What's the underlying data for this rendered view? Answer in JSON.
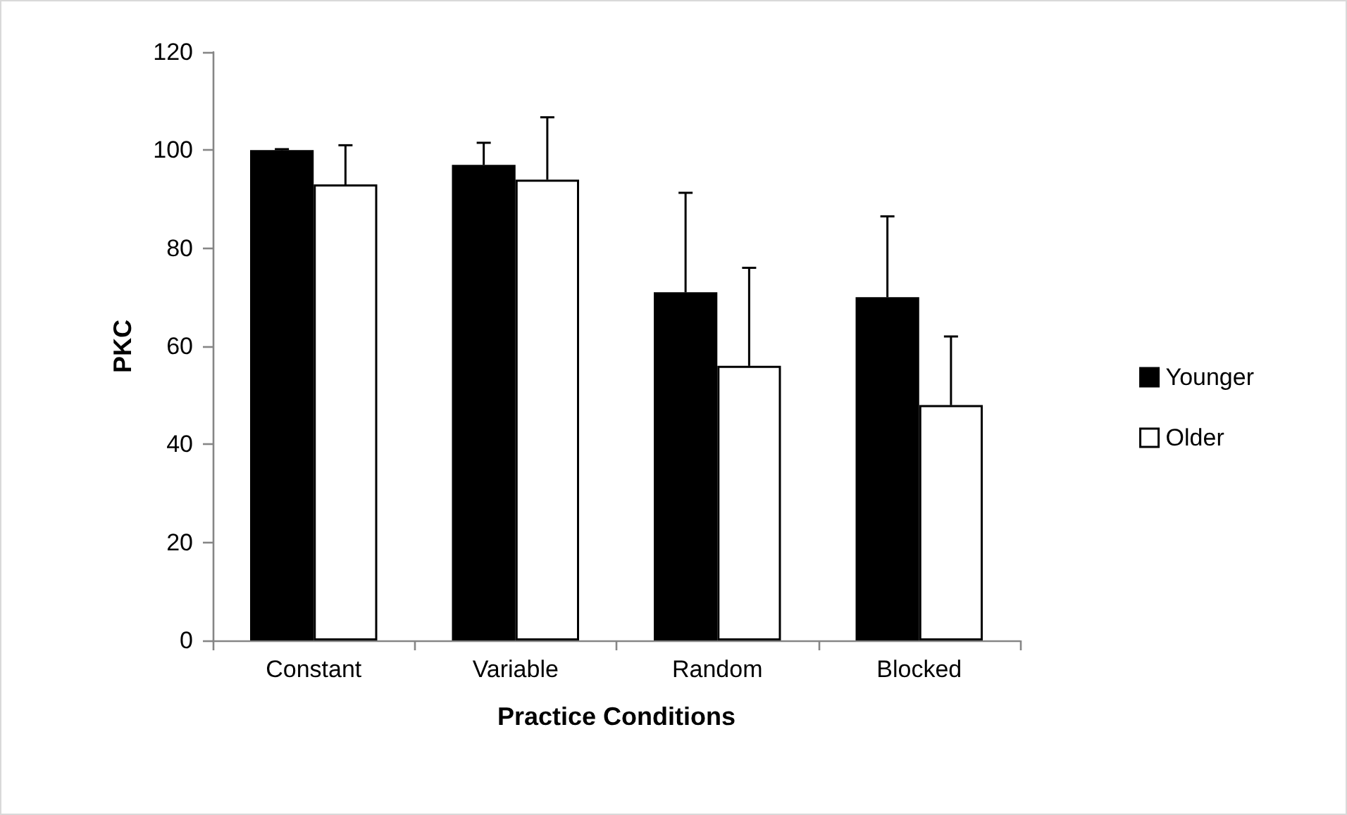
{
  "chart_data": {
    "type": "bar",
    "xlabel": "Practice Conditions",
    "ylabel": "PKC",
    "categories": [
      "Constant",
      "Variable",
      "Random",
      "Blocked"
    ],
    "series": [
      {
        "name": "Younger",
        "color": "#000000",
        "values": [
          100,
          97,
          71,
          70
        ],
        "errors": [
          [
            100,
            100.2
          ],
          [
            97,
            101.5
          ],
          [
            71,
            91.3
          ],
          [
            70,
            86.5
          ]
        ]
      },
      {
        "name": "Older",
        "color": "#ffffff",
        "values": [
          93,
          94,
          56,
          48
        ],
        "errors": [
          [
            93,
            101
          ],
          [
            94,
            106.7
          ],
          [
            56,
            76
          ],
          [
            48,
            62
          ]
        ]
      }
    ],
    "ylim": [
      0,
      120
    ],
    "yticks": [
      0,
      20,
      40,
      60,
      80,
      100,
      120
    ],
    "grid": false,
    "legend": "right"
  }
}
